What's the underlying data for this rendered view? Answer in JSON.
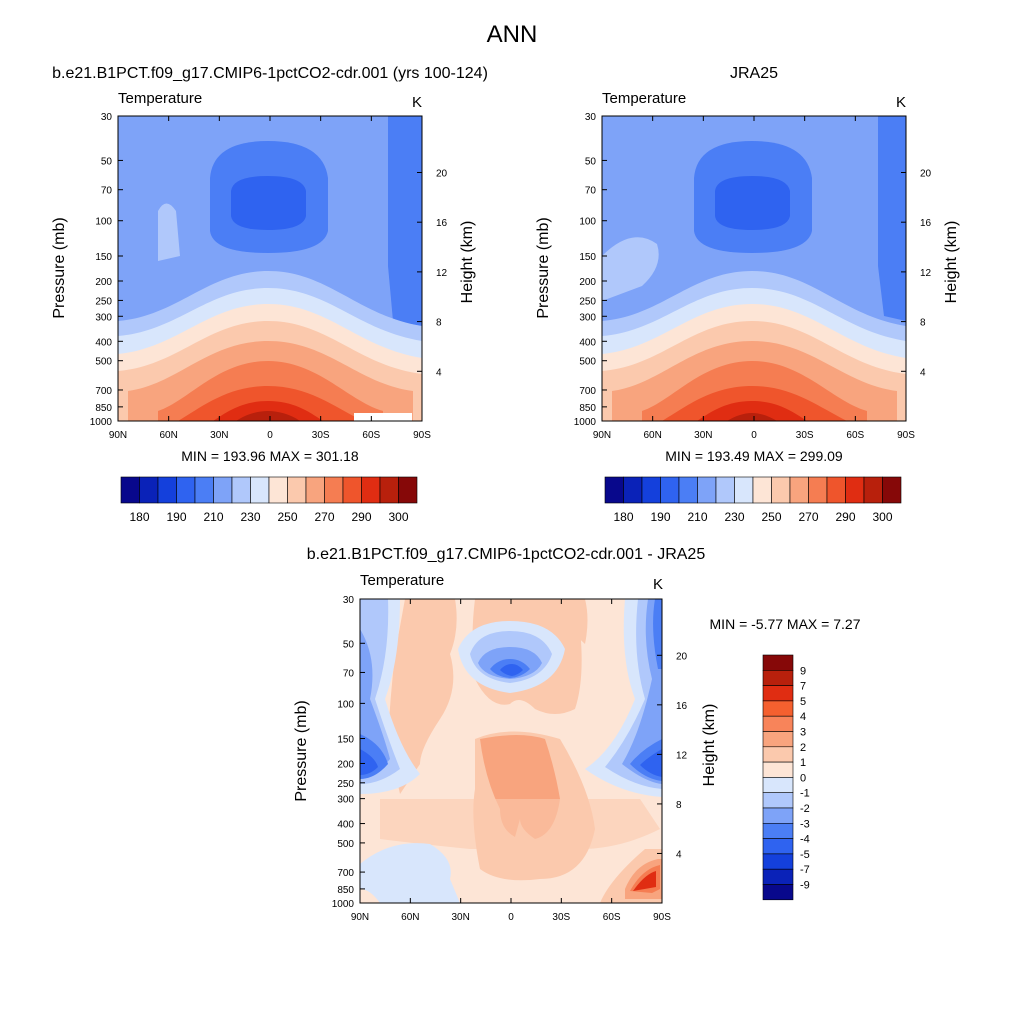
{
  "figure": {
    "title": "ANN"
  },
  "chart_data": [
    {
      "type": "heatmap",
      "title": "b.e21.B1PCT.f09_g17.CMIP6-1pctCO2-cdr.001 (yrs 100-124)",
      "field_label": "Temperature",
      "units": "K",
      "xlabel": "",
      "ylabel": "Pressure (mb)",
      "ylabel_right": "Height (km)",
      "x_ticks": [
        "90N",
        "60N",
        "30N",
        "0",
        "30S",
        "60S",
        "90S"
      ],
      "y_ticks": [
        "30",
        "50",
        "70",
        "100",
        "150",
        "200",
        "250",
        "300",
        "400",
        "500",
        "700",
        "850",
        "1000"
      ],
      "y_ticks_right": [
        "20",
        "16",
        "12",
        "8",
        "4"
      ],
      "stats": "MIN = 193.96  MAX = 301.18",
      "min": 193.96,
      "max": 301.18,
      "colorbar_labels": [
        "180",
        "190",
        "210",
        "230",
        "250",
        "270",
        "290",
        "300"
      ]
    },
    {
      "type": "heatmap",
      "title": "JRA25",
      "field_label": "Temperature",
      "units": "K",
      "xlabel": "",
      "ylabel": "Pressure (mb)",
      "ylabel_right": "Height (km)",
      "x_ticks": [
        "90N",
        "60N",
        "30N",
        "0",
        "30S",
        "60S",
        "90S"
      ],
      "y_ticks": [
        "30",
        "50",
        "70",
        "100",
        "150",
        "200",
        "250",
        "300",
        "400",
        "500",
        "700",
        "850",
        "1000"
      ],
      "y_ticks_right": [
        "20",
        "16",
        "12",
        "8",
        "4"
      ],
      "stats": "MIN = 193.49  MAX = 299.09",
      "min": 193.49,
      "max": 299.09,
      "colorbar_labels": [
        "180",
        "190",
        "210",
        "230",
        "250",
        "270",
        "290",
        "300"
      ]
    },
    {
      "type": "heatmap",
      "title": "b.e21.B1PCT.f09_g17.CMIP6-1pctCO2-cdr.001 - JRA25",
      "field_label": "Temperature",
      "units": "K",
      "xlabel": "",
      "ylabel": "Pressure (mb)",
      "ylabel_right": "Height (km)",
      "x_ticks": [
        "90N",
        "60N",
        "30N",
        "0",
        "30S",
        "60S",
        "90S"
      ],
      "y_ticks": [
        "30",
        "50",
        "70",
        "100",
        "150",
        "200",
        "250",
        "300",
        "400",
        "500",
        "700",
        "850",
        "1000"
      ],
      "y_ticks_right": [
        "20",
        "16",
        "12",
        "8",
        "4"
      ],
      "stats": "MIN =  -5.77  MAX =   7.27",
      "min": -5.77,
      "max": 7.27,
      "colorbar_labels": [
        "9",
        "7",
        "5",
        "4",
        "3",
        "2",
        "1",
        "0",
        "-1",
        "-2",
        "-3",
        "-4",
        "-5",
        "-7",
        "-9"
      ]
    }
  ],
  "colors": {
    "abs_scale": [
      "#08088c",
      "#0a22b8",
      "#1440dc",
      "#2f63f0",
      "#4b7ef5",
      "#7ea3f8",
      "#b0c8fb",
      "#d8e6fc",
      "#fde5d6",
      "#fbc9ad",
      "#f8a47e",
      "#f57d52",
      "#ef552c",
      "#e02d12",
      "#b8200c",
      "#860808"
    ],
    "diff_scale": [
      "#860808",
      "#b8200c",
      "#e02d12",
      "#f5602f",
      "#f8845a",
      "#f8a47e",
      "#fbc9ad",
      "#fde5d6",
      "#d8e6fc",
      "#b0c8fb",
      "#7ea3f8",
      "#4b7ef5",
      "#2f63f0",
      "#1440dc",
      "#0a22b8",
      "#08088c"
    ]
  }
}
